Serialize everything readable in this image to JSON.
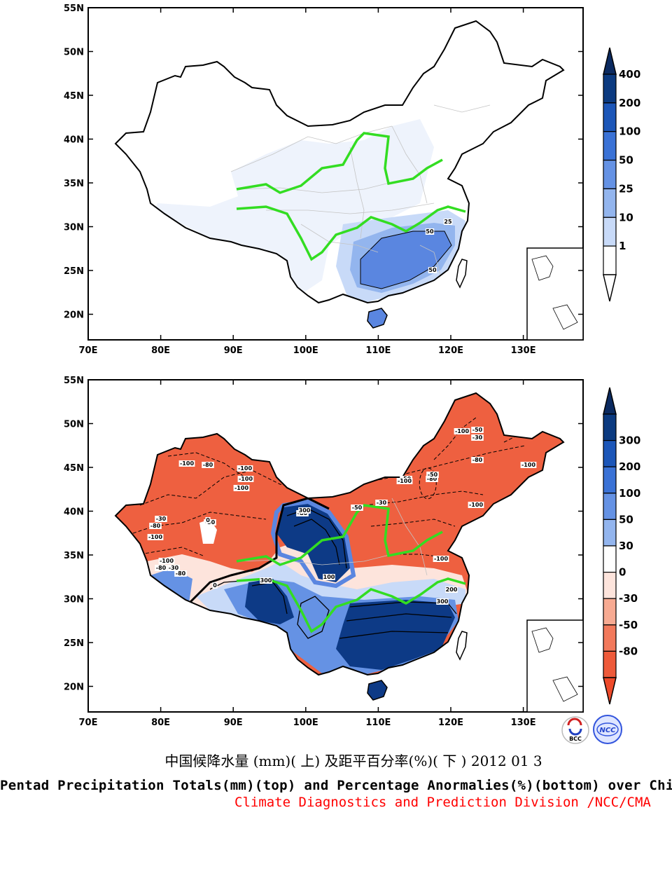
{
  "maps": [
    {
      "id": "top",
      "lat_ticks": [
        "55N",
        "50N",
        "45N",
        "40N",
        "35N",
        "30N",
        "25N",
        "20N"
      ],
      "lon_ticks": [
        "70E",
        "80E",
        "90E",
        "100E",
        "110E",
        "120E",
        "130E"
      ],
      "contour_labels": [
        "25",
        "50",
        "50"
      ],
      "colorbar": {
        "labels": [
          "400",
          "200",
          "100",
          "50",
          "25",
          "10",
          "1"
        ],
        "colors": [
          "#0b3a80",
          "#1c56b8",
          "#3a72d6",
          "#6592e4",
          "#93b5ee",
          "#c8daf8",
          "#ffffff"
        ],
        "triangle_top": "#0b2a60",
        "triangle_bottom": "#ffffff"
      }
    },
    {
      "id": "bottom",
      "lat_ticks": [
        "55N",
        "50N",
        "45N",
        "40N",
        "35N",
        "30N",
        "25N",
        "20N"
      ],
      "lon_ticks": [
        "70E",
        "80E",
        "90E",
        "100E",
        "110E",
        "120E",
        "130E"
      ],
      "contour_labels": [
        "-100",
        "-80",
        "-100",
        "-100",
        "-30",
        "-80",
        "-100",
        "-50",
        "-80",
        "-50",
        "-30",
        "-50",
        "-80",
        "-100",
        "-50",
        "300",
        "0",
        "100",
        "300",
        "-100",
        "-80",
        "-30",
        "300",
        "200",
        "-50",
        "-30",
        "-80",
        "-100",
        "-100",
        "-100",
        "-80",
        "0",
        "-100",
        "-100"
      ],
      "colorbar": {
        "labels": [
          "300",
          "200",
          "100",
          "50",
          "30",
          "0",
          "-30",
          "-50",
          "-80"
        ],
        "colors": [
          "#0b3a80",
          "#1c56b8",
          "#3a72d6",
          "#6592e4",
          "#93b5ee",
          "#ffffff",
          "#fde4dc",
          "#f7aa92",
          "#f2795b",
          "#ee5a3a"
        ],
        "triangle_top": "#0b2a60",
        "triangle_bottom": "#ee4a2a"
      }
    }
  ],
  "title_cn": "中国候降水量 (mm)( 上) 及距平百分率(%)( 下 ) 2012 01 3",
  "title_en": "Pentad Precipitation Totals(mm)(top) and Percentage Anormalies(%)(bottom) over China",
  "credit": "Climate Diagnostics and Prediction Division /NCC/CMA",
  "logos": [
    "BCC",
    "NCC"
  ]
}
